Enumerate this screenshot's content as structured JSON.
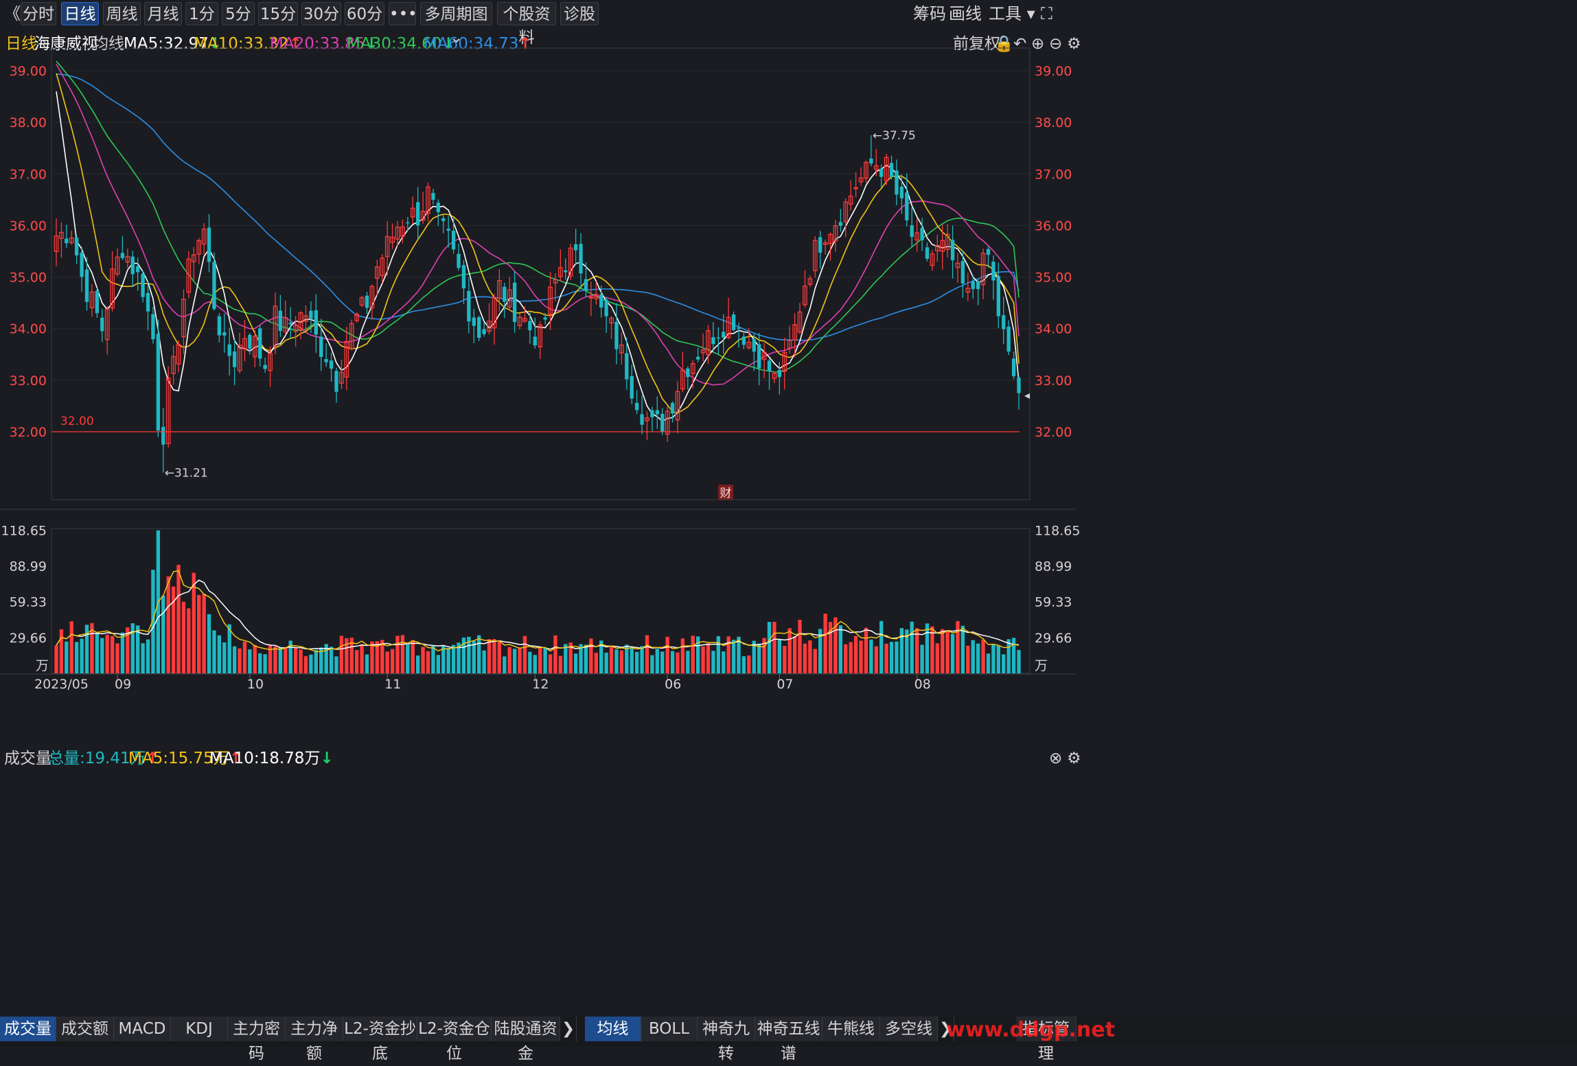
{
  "toolbar": {
    "back_glyph": "《",
    "periods": [
      "分时",
      "日线",
      "周线",
      "月线",
      "1分",
      "5分",
      "15分",
      "30分",
      "60分"
    ],
    "more_glyph": "•••",
    "multi_period": "多周期图",
    "stock_profile": "个股资料",
    "diagnose": "诊股",
    "right": [
      "筹码",
      "画线",
      "工具"
    ]
  },
  "legend": {
    "period": "日线",
    "stock_name": "海康威视",
    "ma_label": "均线",
    "ma5": "MA5:32.97",
    "ma10": "MA10:33.32",
    "ma20": "MA20:33.85",
    "ma30": "MA30:34.60",
    "ma60": "MA60:34.73",
    "adjust": "前复权"
  },
  "colors": {
    "up": "#ff3b3b",
    "down": "#1fb8c4",
    "ma5": "#ffffff",
    "ma10": "#f2c417",
    "ma20": "#e040b3",
    "ma30": "#2fc756",
    "ma60": "#2b8fe8",
    "support_line": "#ff3b3b",
    "background": "#1b1c21"
  },
  "price_axis": {
    "ticks": [
      "39.00",
      "38.00",
      "37.00",
      "36.00",
      "35.00",
      "34.00",
      "33.00",
      "32.00"
    ]
  },
  "annotations": {
    "high": "37.75",
    "low": "31.21",
    "support": "32.00",
    "finance_badge": "财"
  },
  "vol_legend": {
    "label": "成交量",
    "total": "总量:19.41万",
    "ma5": "MA5:15.75万",
    "ma10": "MA10:18.78万"
  },
  "vol_axis": {
    "ticks": [
      "118.65",
      "88.99",
      "59.33",
      "29.66"
    ],
    "unit": "万"
  },
  "date_axis": [
    "2023/05",
    "06",
    "07",
    "08",
    "09",
    "10",
    "11",
    "12"
  ],
  "bottom_tabs_left": [
    "成交量",
    "成交额",
    "MACD",
    "KDJ",
    "主力密码",
    "主力净额",
    "L2-资金抄底",
    "L2-资金仓位",
    "陆股通资金"
  ],
  "bottom_tabs_right": [
    "均线",
    "BOLL",
    "神奇九转",
    "神奇五线谱",
    "牛熊线",
    "多空线"
  ],
  "indicator_mgmt": "指标管理",
  "watermark": "www.ddgp.net",
  "chart_data": {
    "type": "candlestick",
    "title": "",
    "y_range": [
      30.6,
      39.7
    ],
    "volume_range": [
      0,
      120
    ],
    "month_starts": {
      "06": 12,
      "07": 38,
      "08": 65,
      "09": 94,
      "10": 120,
      "11": 142,
      "12": 169
    },
    "n_days": 190,
    "last_close": 32.75,
    "key_levels": {
      "high": 37.75,
      "low": 31.21,
      "support": 32.0
    },
    "ma_end": {
      "ma5": 32.97,
      "ma10": 33.32,
      "ma20": 33.85,
      "ma30": 34.6,
      "ma60": 34.73
    },
    "volume_now": 19.41,
    "volume_ma5": 15.75,
    "volume_ma10": 18.78,
    "close_path": [
      [
        0,
        35.8
      ],
      [
        3,
        35.9
      ],
      [
        5,
        35.0
      ],
      [
        7,
        34.5
      ],
      [
        9,
        34.0
      ],
      [
        11,
        35.0
      ],
      [
        13,
        35.6
      ],
      [
        15,
        35.2
      ],
      [
        17,
        34.8
      ],
      [
        19,
        33.8
      ],
      [
        20,
        32.2
      ],
      [
        21,
        31.6
      ],
      [
        22,
        32.8
      ],
      [
        23,
        33.2
      ],
      [
        25,
        34.6
      ],
      [
        27,
        35.6
      ],
      [
        29,
        35.9
      ],
      [
        31,
        34.5
      ],
      [
        33,
        33.6
      ],
      [
        35,
        33.4
      ],
      [
        37,
        33.9
      ],
      [
        39,
        33.7
      ],
      [
        41,
        33.3
      ],
      [
        43,
        34.2
      ],
      [
        45,
        34.0
      ],
      [
        47,
        34.2
      ],
      [
        49,
        34.3
      ],
      [
        51,
        33.8
      ],
      [
        53,
        33.5
      ],
      [
        55,
        33.0
      ],
      [
        57,
        33.8
      ],
      [
        59,
        34.2
      ],
      [
        61,
        34.5
      ],
      [
        63,
        35.2
      ],
      [
        65,
        35.6
      ],
      [
        67,
        36.0
      ],
      [
        69,
        36.2
      ],
      [
        71,
        36.2
      ],
      [
        73,
        36.6
      ],
      [
        75,
        36.0
      ],
      [
        77,
        35.7
      ],
      [
        79,
        35.1
      ],
      [
        81,
        34.4
      ],
      [
        83,
        33.9
      ],
      [
        85,
        34.2
      ],
      [
        87,
        34.8
      ],
      [
        89,
        34.5
      ],
      [
        91,
        34.3
      ],
      [
        93,
        34.0
      ],
      [
        95,
        33.8
      ],
      [
        97,
        34.6
      ],
      [
        99,
        35.2
      ],
      [
        101,
        35.4
      ],
      [
        103,
        35.2
      ],
      [
        105,
        34.8
      ],
      [
        107,
        34.3
      ],
      [
        109,
        34.0
      ],
      [
        111,
        33.5
      ],
      [
        113,
        32.9
      ],
      [
        115,
        32.4
      ],
      [
        117,
        32.1
      ],
      [
        119,
        32.2
      ],
      [
        121,
        32.6
      ],
      [
        123,
        33.2
      ],
      [
        125,
        33.4
      ],
      [
        127,
        33.7
      ],
      [
        129,
        33.9
      ],
      [
        131,
        34.1
      ],
      [
        133,
        34.2
      ],
      [
        135,
        33.9
      ],
      [
        137,
        33.6
      ],
      [
        139,
        33.4
      ],
      [
        141,
        33.0
      ],
      [
        143,
        33.3
      ],
      [
        145,
        34.0
      ],
      [
        147,
        34.9
      ],
      [
        149,
        35.5
      ],
      [
        151,
        35.9
      ],
      [
        153,
        36.1
      ],
      [
        155,
        36.4
      ],
      [
        157,
        36.8
      ],
      [
        159,
        37.0
      ],
      [
        161,
        37.2
      ],
      [
        163,
        37.1
      ],
      [
        165,
        36.6
      ],
      [
        167,
        36.0
      ],
      [
        169,
        35.6
      ],
      [
        171,
        35.4
      ],
      [
        173,
        35.5
      ],
      [
        175,
        35.6
      ],
      [
        177,
        35.0
      ],
      [
        179,
        34.6
      ],
      [
        181,
        35.0
      ],
      [
        183,
        35.4
      ],
      [
        185,
        34.3
      ],
      [
        187,
        33.4
      ],
      [
        189,
        32.75
      ]
    ]
  }
}
